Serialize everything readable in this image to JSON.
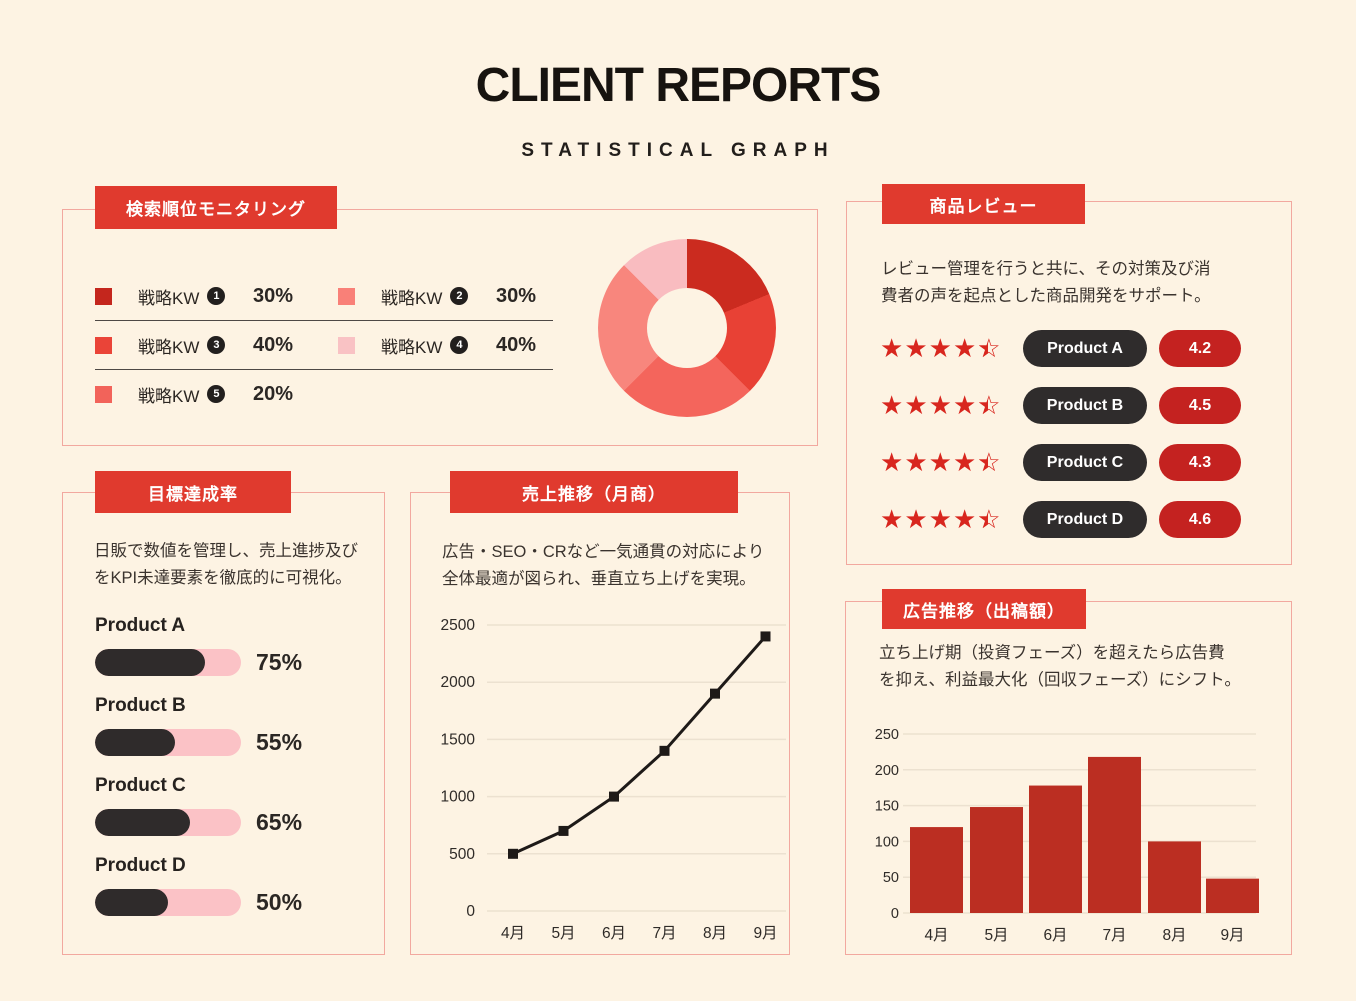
{
  "page": {
    "title": "CLIENT REPORTS",
    "subtitle": "STATISTICAL GRAPH"
  },
  "colors": {
    "bg": "#fdf3e3",
    "accent": "#e03a2e",
    "panel-border": "#f2a89f",
    "ink": "#2f2b28",
    "title-ink": "#17130f",
    "star": "#d8261e",
    "pill-dark": "#2f2c2c",
    "pill-red": "#c42220",
    "track-pink": "#fbc2c6",
    "bar-dark": "#2f2b2b",
    "chart-red": "#bb2e22",
    "grid": "#ece1d0",
    "line": "#1e1a18",
    "divider": "#4d4845",
    "badge": "#221f1e"
  },
  "icons": {
    "star_full": "★",
    "star_outline": "☆"
  },
  "search_panel": {
    "tab": "検索順位モニタリング",
    "legend": [
      {
        "label": "戦略KW",
        "num": "1",
        "value": "30%",
        "color": "#c4261d"
      },
      {
        "label": "戦略KW",
        "num": "2",
        "value": "30%",
        "color": "#f98078"
      },
      {
        "label": "戦略KW",
        "num": "3",
        "value": "40%",
        "color": "#ea4438"
      },
      {
        "label": "戦略KW",
        "num": "4",
        "value": "40%",
        "color": "#f9c2c4"
      },
      {
        "label": "戦略KW",
        "num": "5",
        "value": "20%",
        "color": "#f2635a"
      }
    ]
  },
  "review_panel": {
    "tab": "商品レビュー",
    "desc_line1": "レビュー管理を行うと共に、その対策及び消",
    "desc_line2": "費者の声を起点とした商品開発をサポート。",
    "items": [
      {
        "name": "Product A",
        "score": "4.2",
        "stars": 4.5
      },
      {
        "name": "Product B",
        "score": "4.5",
        "stars": 4.5
      },
      {
        "name": "Product C",
        "score": "4.3",
        "stars": 4.5
      },
      {
        "name": "Product D",
        "score": "4.6",
        "stars": 4.5
      }
    ]
  },
  "goal_panel": {
    "tab": "目標達成率",
    "desc_line1": "日販で数値を管理し、売上進捗及び",
    "desc_line2": "をKPI未達要素を徹底的に可視化。",
    "items": [
      {
        "name": "Product A",
        "percent": 75,
        "label": "75%"
      },
      {
        "name": "Product B",
        "percent": 55,
        "label": "55%"
      },
      {
        "name": "Product C",
        "percent": 65,
        "label": "65%"
      },
      {
        "name": "Product D",
        "percent": 50,
        "label": "50%"
      }
    ]
  },
  "sales_panel": {
    "tab": "売上推移（月商）",
    "desc_line1": "広告・SEO・CRなど一気通貫の対応により",
    "desc_line2": "全体最適が図られ、垂直立ち上げを実現。"
  },
  "ads_panel": {
    "tab": "広告推移（出稿額）",
    "desc_line1": "立ち上げ期（投資フェーズ）を超えたら広告費",
    "desc_line2": "を抑え、利益最大化（回収フェーズ）にシフト。"
  },
  "chart_data": [
    {
      "type": "pie",
      "title": "検索順位モニタリング",
      "donut": true,
      "labels": [
        "戦略KW 1",
        "戦略KW 2",
        "戦略KW 3",
        "戦略KW 4",
        "戦略KW 5"
      ],
      "values": [
        30,
        30,
        40,
        40,
        20
      ],
      "value_labels": [
        "30%",
        "30%",
        "40%",
        "40%",
        "20%"
      ],
      "legend_position": "left",
      "display_segments": [
        {
          "degrees": 67.5,
          "color": "#cb2b1f"
        },
        {
          "degrees": 67.5,
          "color": "#e84135"
        },
        {
          "degrees": 90,
          "color": "#f4655c"
        },
        {
          "degrees": 90,
          "color": "#f8867d"
        },
        {
          "degrees": 45,
          "color": "#f9bcc0"
        }
      ]
    },
    {
      "type": "line",
      "title": "売上推移（月商）",
      "x": [
        "4月",
        "5月",
        "6月",
        "7月",
        "8月",
        "9月"
      ],
      "values": [
        500,
        700,
        1000,
        1400,
        1900,
        2400
      ],
      "ylim": [
        0,
        2500
      ],
      "yticks": [
        0,
        500,
        1000,
        1500,
        2000,
        2500
      ],
      "grid": true,
      "marker": "square"
    },
    {
      "type": "bar",
      "title": "広告推移（出稿額）",
      "categories": [
        "4月",
        "5月",
        "6月",
        "7月",
        "8月",
        "9月"
      ],
      "values": [
        120,
        148,
        178,
        218,
        100,
        48
      ],
      "ylim": [
        0,
        250
      ],
      "yticks": [
        0,
        50,
        100,
        150,
        200,
        250
      ],
      "grid": true
    },
    {
      "type": "bar",
      "title": "目標達成率",
      "categories": [
        "Product A",
        "Product B",
        "Product C",
        "Product D"
      ],
      "values": [
        75,
        55,
        65,
        50
      ],
      "unit": "%"
    },
    {
      "type": "table",
      "title": "商品レビュー",
      "categories": [
        "Product A",
        "Product B",
        "Product C",
        "Product D"
      ],
      "values": [
        4.2,
        4.5,
        4.3,
        4.6
      ],
      "stars_shown": [
        4.5,
        4.5,
        4.5,
        4.5
      ]
    }
  ]
}
